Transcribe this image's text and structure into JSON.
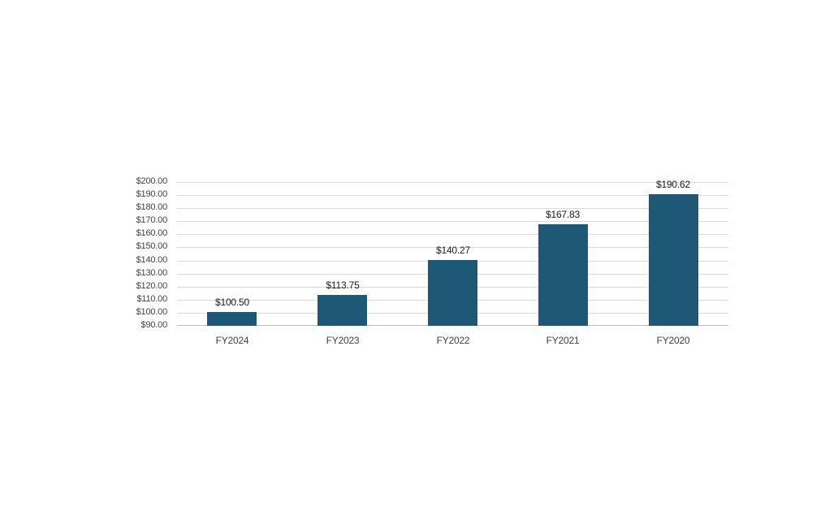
{
  "chart_data": {
    "type": "bar",
    "title": "",
    "xlabel": "",
    "ylabel": "",
    "categories": [
      "FY2024",
      "FY2023",
      "FY2022",
      "FY2021",
      "FY2020"
    ],
    "values": [
      100.5,
      113.75,
      140.27,
      167.83,
      190.62
    ],
    "data_labels": [
      "$100.50",
      "$113.75",
      "$140.27",
      "$167.83",
      "$190.62"
    ],
    "ylim": [
      90,
      200
    ],
    "y_tick_step": 10,
    "y_tick_values": [
      90,
      100,
      110,
      120,
      130,
      140,
      150,
      160,
      170,
      180,
      190,
      200
    ],
    "y_tick_labels": [
      "$90.00",
      "$100.00",
      "$110.00",
      "$120.00",
      "$130.00",
      "$140.00",
      "$150.00",
      "$160.00",
      "$170.00",
      "$180.00",
      "$190.00",
      "$200.00"
    ],
    "grid": true,
    "legend": false,
    "colors": {
      "bar_fill": "#1D5977",
      "gridline": "#D9D9D9",
      "axis_line": "#BFBFBF",
      "axis_tick_text": "#404040",
      "data_label_text": "#1A1A1A"
    }
  }
}
